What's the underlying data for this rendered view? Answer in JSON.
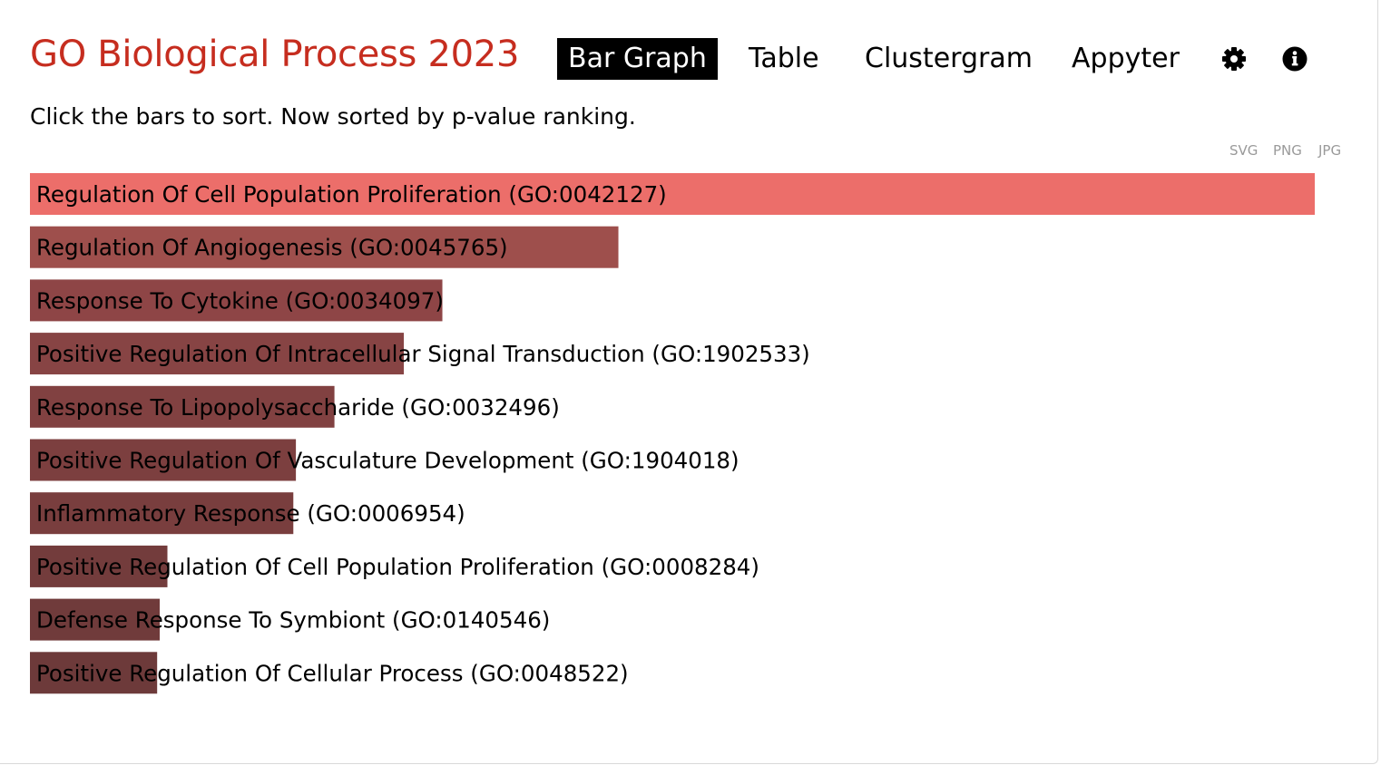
{
  "header": {
    "title": "GO Biological Process 2023",
    "tabs": [
      {
        "label": "Bar Graph",
        "active": true
      },
      {
        "label": "Table",
        "active": false
      },
      {
        "label": "Clustergram",
        "active": false
      },
      {
        "label": "Appyter",
        "active": false
      }
    ],
    "icons": [
      "gear-icon",
      "info-circle-icon"
    ]
  },
  "subtitle": "Click the bars to sort. Now sorted by p-value ranking.",
  "export_links": [
    "SVG",
    "PNG",
    "JPG"
  ],
  "colors": {
    "title": "#c62d1f",
    "top_bar": "#ec6e6a",
    "bar_dark_start": "#9e4f4c",
    "bar_dark_end": "#6d3a3a"
  },
  "chart_data": {
    "type": "bar",
    "orientation": "horizontal",
    "sort": "p-value ranking",
    "categories": [
      "Regulation Of Cell Population Proliferation (GO:0042127)",
      "Regulation Of Angiogenesis (GO:0045765)",
      "Response To Cytokine (GO:0034097)",
      "Positive Regulation Of Intracellular Signal Transduction (GO:1902533)",
      "Response To Lipopolysaccharide (GO:0032496)",
      "Positive Regulation Of Vasculature Development (GO:1904018)",
      "Inflammatory Response (GO:0006954)",
      "Positive Regulation Of Cell Population Proliferation (GO:0008284)",
      "Defense Response To Symbiont (GO:0140546)",
      "Positive Regulation Of Cellular Process (GO:0048522)"
    ],
    "values": [
      1.0,
      0.458,
      0.321,
      0.291,
      0.237,
      0.207,
      0.205,
      0.107,
      0.101,
      0.099
    ],
    "bar_colors": [
      "#ec6e6a",
      "#9e4f4c",
      "#8e4546",
      "#874444",
      "#814141",
      "#7c3f3f",
      "#793e3e",
      "#733c3c",
      "#703b3b",
      "#6d3a3a"
    ],
    "xlim": [
      0,
      1
    ],
    "title": "",
    "xlabel": "",
    "ylabel": ""
  }
}
